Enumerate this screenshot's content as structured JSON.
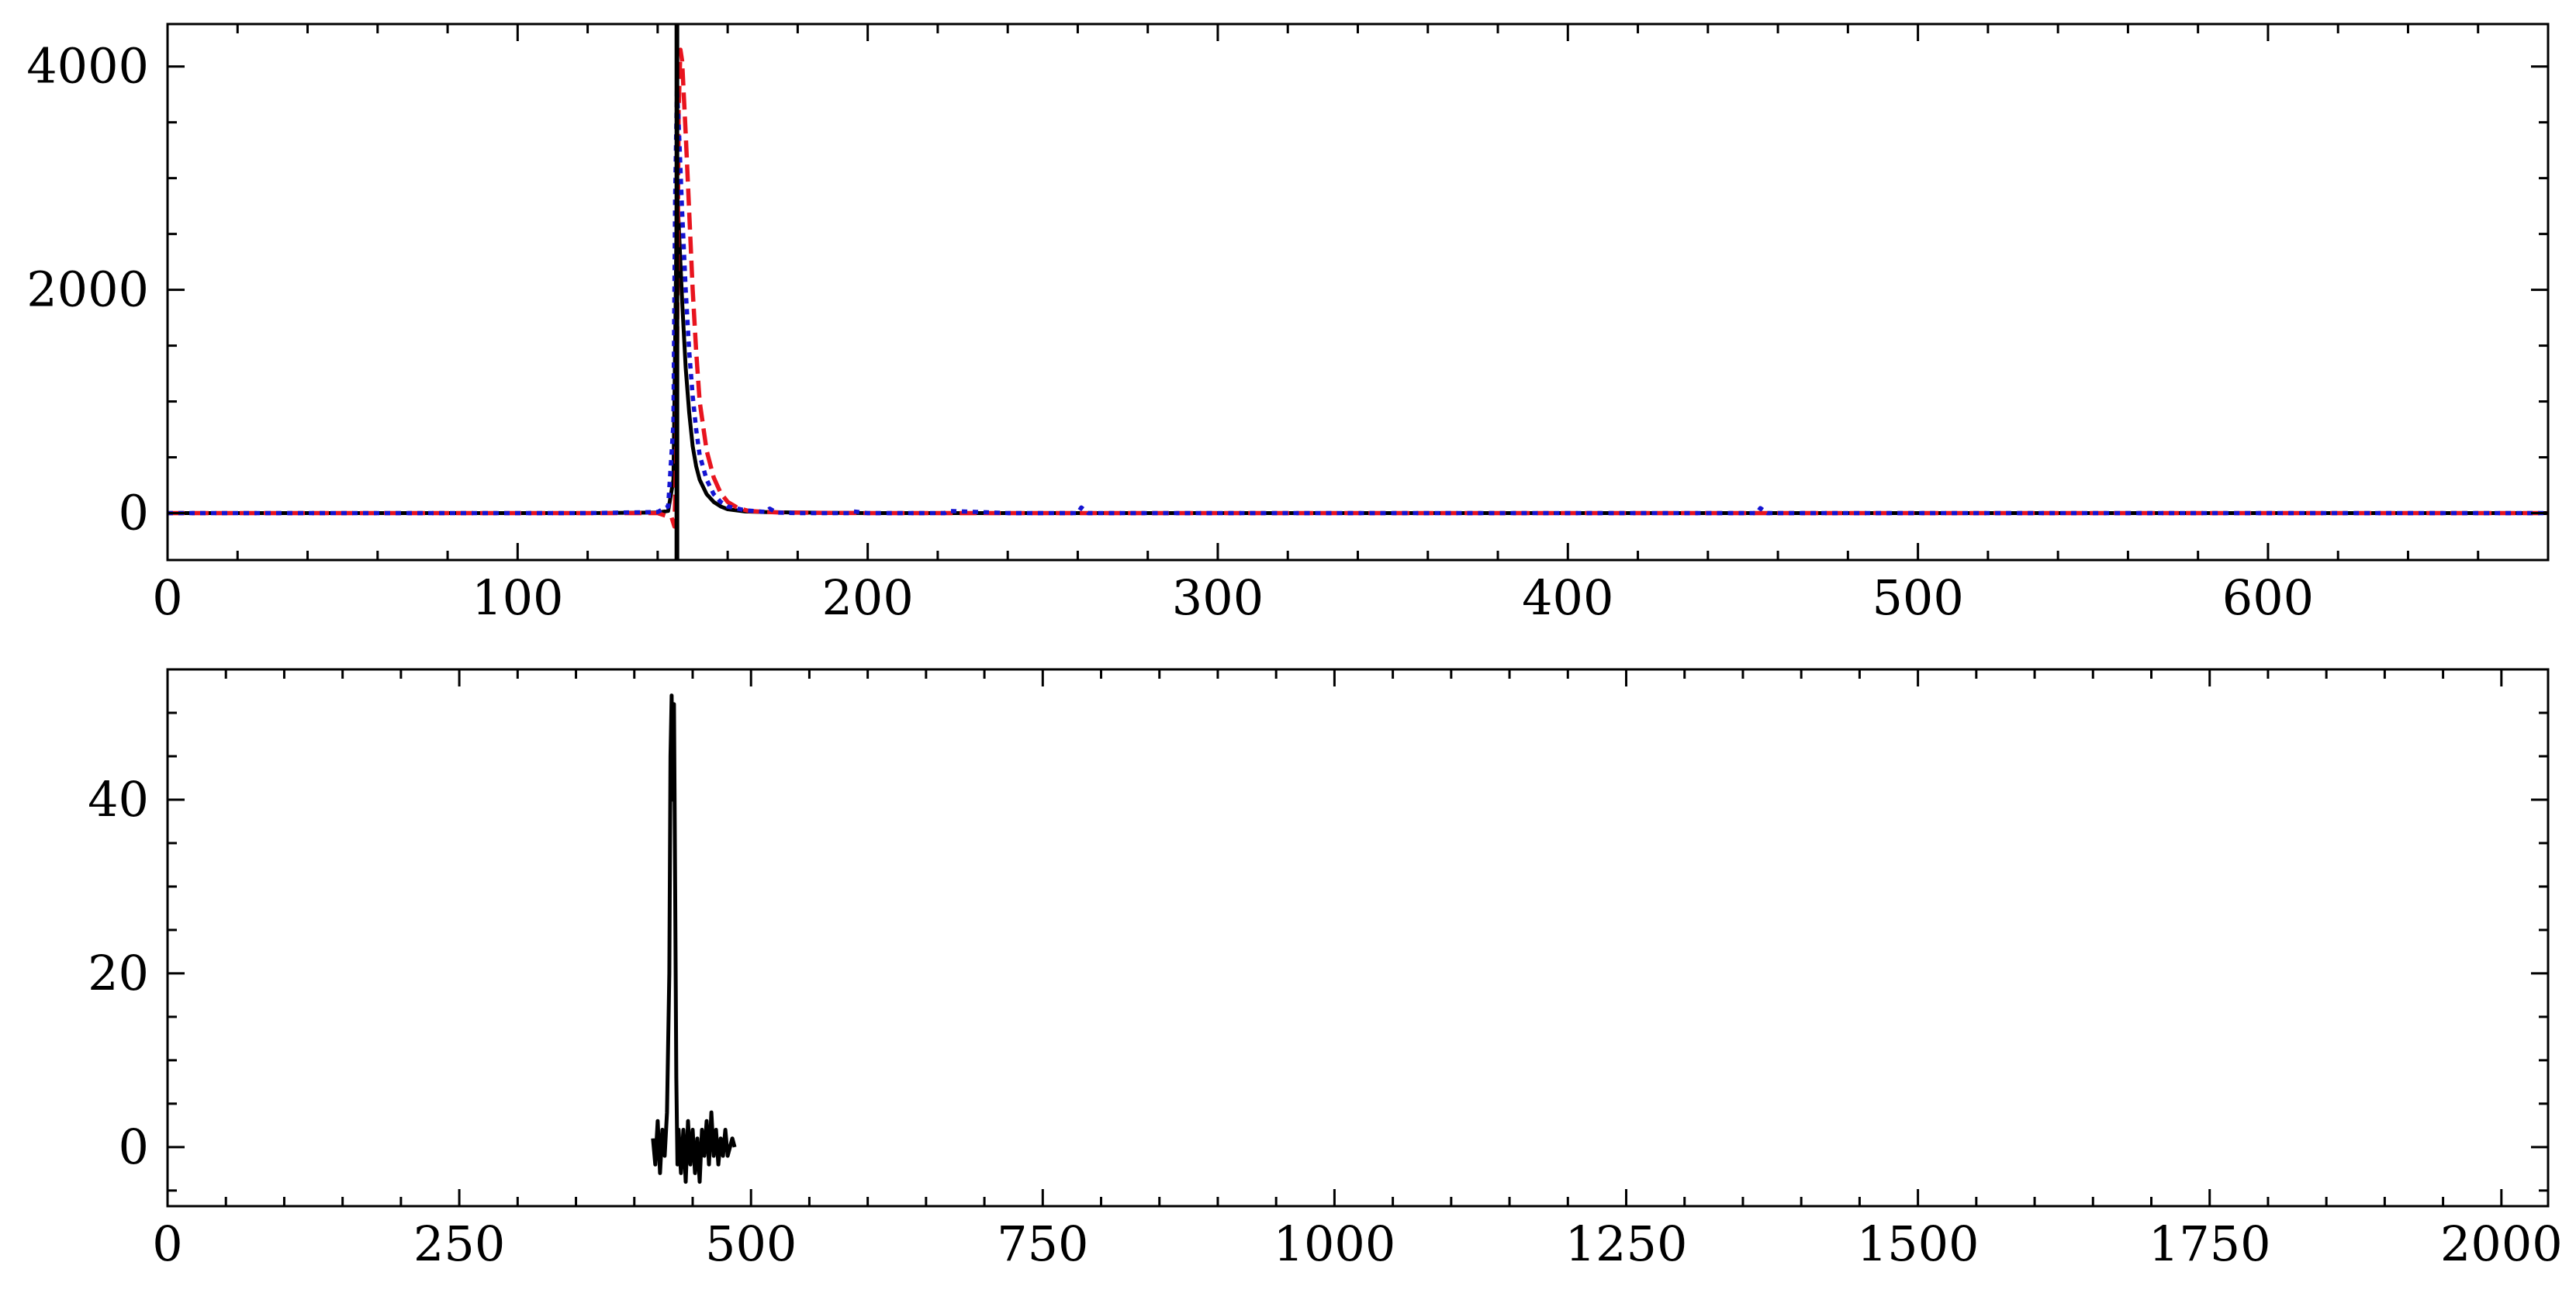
{
  "chart_data": [
    {
      "type": "line",
      "title": "",
      "xlabel": "",
      "ylabel": "",
      "xlim": [
        0,
        680
      ],
      "ylim": [
        -420,
        4380
      ],
      "x_ticks": [
        0,
        100,
        200,
        300,
        400,
        500,
        600
      ],
      "x_tick_labels": [
        "0",
        "100",
        "200",
        "300",
        "400",
        "500",
        "600"
      ],
      "x_minor_step": 20,
      "y_ticks": [
        0,
        2000,
        4000
      ],
      "y_tick_labels": [
        "0",
        "2000",
        "4000"
      ],
      "y_minor_step": 500,
      "grid": false,
      "vline_x": 145.5,
      "series": [
        {
          "style": "solid",
          "color": "#000000",
          "x": [
            0,
            60,
            120,
            140,
            143,
            144.5,
            145,
            145.5,
            146,
            147,
            148,
            149,
            150,
            151,
            152,
            154,
            156,
            158,
            160,
            165,
            170,
            180,
            200,
            250,
            300,
            400,
            500,
            600,
            680
          ],
          "y": [
            0,
            0,
            0,
            5,
            20,
            300,
            1500,
            2900,
            2600,
            1900,
            1300,
            900,
            600,
            420,
            300,
            170,
            100,
            60,
            35,
            15,
            10,
            5,
            0,
            0,
            0,
            0,
            0,
            0,
            0
          ]
        },
        {
          "style": "dashed",
          "color": "#e8141e",
          "x": [
            0,
            60,
            120,
            140,
            144,
            144.8,
            145.3,
            145.7,
            146,
            146.5,
            147,
            148,
            149,
            150,
            151,
            152,
            154,
            156,
            158,
            160,
            163,
            166,
            170,
            175,
            185,
            200,
            250,
            300,
            400,
            500,
            600,
            680
          ],
          "y": [
            0,
            0,
            0,
            0,
            -40,
            -120,
            500,
            2200,
            3600,
            4150,
            4050,
            3400,
            2700,
            2000,
            1450,
            1000,
            560,
            320,
            180,
            100,
            45,
            20,
            12,
            6,
            3,
            0,
            0,
            0,
            0,
            0,
            0,
            0
          ]
        },
        {
          "style": "dotted",
          "color": "#1414d2",
          "x": [
            0,
            60,
            120,
            140,
            143,
            144.5,
            145,
            145.5,
            146,
            147,
            148,
            149,
            150,
            151,
            152,
            154,
            156,
            158,
            160,
            165,
            171,
            172,
            174,
            180,
            195,
            196,
            200,
            222,
            223,
            240,
            260,
            261,
            263,
            300,
            400,
            454,
            455,
            457,
            500,
            600,
            680
          ],
          "y": [
            0,
            0,
            0,
            10,
            60,
            800,
            2800,
            3800,
            3500,
            2700,
            2000,
            1450,
            1050,
            750,
            520,
            300,
            170,
            100,
            60,
            25,
            10,
            40,
            5,
            0,
            0,
            15,
            0,
            0,
            20,
            0,
            0,
            50,
            0,
            0,
            0,
            0,
            45,
            0,
            0,
            0,
            0
          ]
        }
      ]
    },
    {
      "type": "line",
      "title": "",
      "xlabel": "",
      "ylabel": "",
      "xlim": [
        0,
        2040
      ],
      "ylim": [
        -6.8,
        55
      ],
      "x_ticks": [
        0,
        250,
        500,
        750,
        1000,
        1250,
        1500,
        1750,
        2000
      ],
      "x_tick_labels": [
        "0",
        "250",
        "500",
        "750",
        "1000",
        "1250",
        "1500",
        "1750",
        "2000"
      ],
      "x_minor_step": 50,
      "y_ticks": [
        0,
        20,
        40
      ],
      "y_tick_labels": [
        "0",
        "20",
        "40"
      ],
      "y_minor_step": 5,
      "grid": false,
      "series": [
        {
          "style": "solid",
          "color": "#000000",
          "x": [
            416,
            418,
            420,
            422,
            424,
            426,
            428,
            430,
            431,
            432,
            433,
            434,
            435,
            436,
            437,
            438,
            440,
            442,
            444,
            446,
            448,
            450,
            452,
            454,
            456,
            458,
            460,
            462,
            464,
            466,
            468,
            470,
            472,
            474,
            476,
            478,
            480,
            482,
            484,
            486
          ],
          "y": [
            1,
            -2,
            3,
            -3,
            2,
            -1,
            4,
            20,
            45,
            52,
            40,
            51,
            30,
            8,
            -2,
            2,
            -3,
            2,
            -4,
            3,
            -2,
            2,
            -3,
            1,
            -4,
            2,
            -1,
            3,
            -2,
            4,
            -1,
            2,
            -2,
            1,
            -1,
            2,
            -1,
            0,
            1,
            0
          ]
        }
      ]
    }
  ]
}
